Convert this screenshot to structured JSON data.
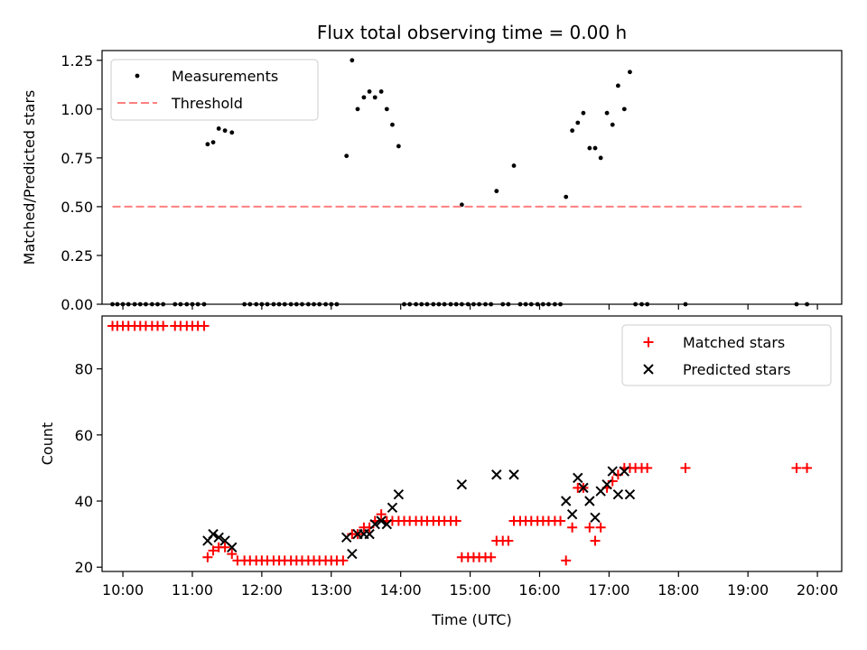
{
  "chart_data": [
    {
      "type": "scatter",
      "title": "Flux total observing time = 0.00 h",
      "xlabel": "",
      "ylabel": "Matched/Predicted stars",
      "ylim": [
        0,
        1.3
      ],
      "yticks": [
        "0.00",
        "0.25",
        "0.50",
        "0.75",
        "1.00",
        "1.25"
      ],
      "legend_position": "top-left",
      "series": [
        {
          "name": "Measurements",
          "marker": "dot",
          "color": "#000000",
          "points": [
            [
              9.85,
              0
            ],
            [
              9.92,
              0
            ],
            [
              10.0,
              0
            ],
            [
              10.08,
              0
            ],
            [
              10.17,
              0
            ],
            [
              10.25,
              0
            ],
            [
              10.33,
              0
            ],
            [
              10.42,
              0
            ],
            [
              10.5,
              0
            ],
            [
              10.58,
              0
            ],
            [
              10.75,
              0
            ],
            [
              10.83,
              0
            ],
            [
              10.92,
              0
            ],
            [
              11.0,
              0
            ],
            [
              11.08,
              0
            ],
            [
              11.17,
              0
            ],
            [
              11.22,
              0.82
            ],
            [
              11.3,
              0.83
            ],
            [
              11.38,
              0.9
            ],
            [
              11.47,
              0.89
            ],
            [
              11.57,
              0.88
            ],
            [
              11.75,
              0
            ],
            [
              11.83,
              0
            ],
            [
              11.92,
              0
            ],
            [
              12.0,
              0
            ],
            [
              12.08,
              0
            ],
            [
              12.17,
              0
            ],
            [
              12.25,
              0
            ],
            [
              12.33,
              0
            ],
            [
              12.42,
              0
            ],
            [
              12.5,
              0
            ],
            [
              12.58,
              0
            ],
            [
              12.67,
              0
            ],
            [
              12.75,
              0
            ],
            [
              12.83,
              0
            ],
            [
              12.92,
              0
            ],
            [
              13.0,
              0
            ],
            [
              13.08,
              0
            ],
            [
              13.22,
              0.76
            ],
            [
              13.3,
              1.25
            ],
            [
              13.38,
              1.0
            ],
            [
              13.47,
              1.06
            ],
            [
              13.55,
              1.09
            ],
            [
              13.63,
              1.06
            ],
            [
              13.72,
              1.09
            ],
            [
              13.8,
              1.0
            ],
            [
              13.88,
              0.92
            ],
            [
              13.97,
              0.81
            ],
            [
              14.05,
              0
            ],
            [
              14.13,
              0
            ],
            [
              14.22,
              0
            ],
            [
              14.3,
              0
            ],
            [
              14.38,
              0
            ],
            [
              14.47,
              0
            ],
            [
              14.55,
              0
            ],
            [
              14.63,
              0
            ],
            [
              14.72,
              0
            ],
            [
              14.8,
              0
            ],
            [
              14.88,
              0
            ],
            [
              14.88,
              0.51
            ],
            [
              14.97,
              0
            ],
            [
              15.05,
              0
            ],
            [
              15.13,
              0
            ],
            [
              15.22,
              0
            ],
            [
              15.3,
              0
            ],
            [
              15.38,
              0.58
            ],
            [
              15.47,
              0
            ],
            [
              15.55,
              0
            ],
            [
              15.63,
              0.71
            ],
            [
              15.72,
              0
            ],
            [
              15.8,
              0
            ],
            [
              15.88,
              0
            ],
            [
              15.97,
              0
            ],
            [
              16.05,
              0
            ],
            [
              16.13,
              0
            ],
            [
              16.22,
              0
            ],
            [
              16.3,
              0
            ],
            [
              16.38,
              0.55
            ],
            [
              16.47,
              0.89
            ],
            [
              16.55,
              0.93
            ],
            [
              16.63,
              0.98
            ],
            [
              16.72,
              0.8
            ],
            [
              16.8,
              0.8
            ],
            [
              16.88,
              0.75
            ],
            [
              16.97,
              0.98
            ],
            [
              17.05,
              0.92
            ],
            [
              17.13,
              1.12
            ],
            [
              17.22,
              1.0
            ],
            [
              17.3,
              1.19
            ],
            [
              17.38,
              0
            ],
            [
              17.47,
              0
            ],
            [
              17.55,
              0
            ],
            [
              18.1,
              0
            ],
            [
              19.7,
              0
            ],
            [
              19.85,
              0
            ]
          ]
        },
        {
          "name": "Threshold",
          "type": "line",
          "style": "dashed",
          "color": "#ff7f7f",
          "points": [
            [
              9.85,
              0.5
            ],
            [
              19.8,
              0.5
            ]
          ]
        }
      ]
    },
    {
      "type": "scatter",
      "title": "",
      "xlabel": "Time (UTC)",
      "ylabel": "Count",
      "ylim": [
        18.7,
        96
      ],
      "yticks": [
        "20",
        "40",
        "60",
        "80"
      ],
      "xlim": [
        9.7,
        20.35
      ],
      "xticks": [
        "10:00",
        "11:00",
        "12:00",
        "13:00",
        "14:00",
        "15:00",
        "16:00",
        "17:00",
        "18:00",
        "19:00",
        "20:00"
      ],
      "legend_position": "top-right",
      "series": [
        {
          "name": "Matched stars",
          "marker": "plus",
          "color": "#ff0000",
          "points": [
            [
              9.85,
              93
            ],
            [
              9.92,
              93
            ],
            [
              10.0,
              93
            ],
            [
              10.08,
              93
            ],
            [
              10.17,
              93
            ],
            [
              10.25,
              93
            ],
            [
              10.33,
              93
            ],
            [
              10.42,
              93
            ],
            [
              10.5,
              93
            ],
            [
              10.58,
              93
            ],
            [
              10.75,
              93
            ],
            [
              10.83,
              93
            ],
            [
              10.92,
              93
            ],
            [
              11.0,
              93
            ],
            [
              11.08,
              93
            ],
            [
              11.17,
              93
            ],
            [
              11.22,
              23
            ],
            [
              11.3,
              25
            ],
            [
              11.38,
              26
            ],
            [
              11.47,
              26
            ],
            [
              11.57,
              24
            ],
            [
              11.65,
              22
            ],
            [
              11.75,
              22
            ],
            [
              11.83,
              22
            ],
            [
              11.92,
              22
            ],
            [
              12.0,
              22
            ],
            [
              12.08,
              22
            ],
            [
              12.17,
              22
            ],
            [
              12.25,
              22
            ],
            [
              12.33,
              22
            ],
            [
              12.42,
              22
            ],
            [
              12.5,
              22
            ],
            [
              12.58,
              22
            ],
            [
              12.67,
              22
            ],
            [
              12.75,
              22
            ],
            [
              12.83,
              22
            ],
            [
              12.92,
              22
            ],
            [
              13.0,
              22
            ],
            [
              13.08,
              22
            ],
            [
              13.17,
              22
            ],
            [
              13.3,
              30
            ],
            [
              13.38,
              30
            ],
            [
              13.47,
              32
            ],
            [
              13.55,
              32
            ],
            [
              13.63,
              34
            ],
            [
              13.72,
              36
            ],
            [
              13.8,
              34
            ],
            [
              13.88,
              34
            ],
            [
              13.97,
              34
            ],
            [
              14.05,
              34
            ],
            [
              14.13,
              34
            ],
            [
              14.22,
              34
            ],
            [
              14.3,
              34
            ],
            [
              14.38,
              34
            ],
            [
              14.47,
              34
            ],
            [
              14.55,
              34
            ],
            [
              14.63,
              34
            ],
            [
              14.72,
              34
            ],
            [
              14.8,
              34
            ],
            [
              14.88,
              23
            ],
            [
              14.97,
              23
            ],
            [
              15.05,
              23
            ],
            [
              15.13,
              23
            ],
            [
              15.22,
              23
            ],
            [
              15.3,
              23
            ],
            [
              15.38,
              28
            ],
            [
              15.47,
              28
            ],
            [
              15.55,
              28
            ],
            [
              15.63,
              34
            ],
            [
              15.72,
              34
            ],
            [
              15.8,
              34
            ],
            [
              15.88,
              34
            ],
            [
              15.97,
              34
            ],
            [
              16.05,
              34
            ],
            [
              16.13,
              34
            ],
            [
              16.22,
              34
            ],
            [
              16.3,
              34
            ],
            [
              16.38,
              22
            ],
            [
              16.47,
              32
            ],
            [
              16.55,
              44
            ],
            [
              16.63,
              44
            ],
            [
              16.72,
              32
            ],
            [
              16.8,
              28
            ],
            [
              16.88,
              32
            ],
            [
              16.97,
              44
            ],
            [
              17.05,
              46
            ],
            [
              17.13,
              48
            ],
            [
              17.22,
              50
            ],
            [
              17.3,
              50
            ],
            [
              17.38,
              50
            ],
            [
              17.47,
              50
            ],
            [
              17.55,
              50
            ],
            [
              18.1,
              50
            ],
            [
              19.7,
              50
            ],
            [
              19.85,
              50
            ]
          ]
        },
        {
          "name": "Predicted stars",
          "marker": "x",
          "color": "#000000",
          "points": [
            [
              11.22,
              28
            ],
            [
              11.3,
              30
            ],
            [
              11.38,
              29
            ],
            [
              11.47,
              28
            ],
            [
              11.57,
              26
            ],
            [
              13.22,
              29
            ],
            [
              13.3,
              24
            ],
            [
              13.38,
              30
            ],
            [
              13.47,
              30
            ],
            [
              13.55,
              30
            ],
            [
              13.63,
              33
            ],
            [
              13.72,
              34
            ],
            [
              13.8,
              33
            ],
            [
              13.88,
              38
            ],
            [
              13.97,
              42
            ],
            [
              14.88,
              45
            ],
            [
              15.38,
              48
            ],
            [
              15.63,
              48
            ],
            [
              16.38,
              40
            ],
            [
              16.47,
              36
            ],
            [
              16.55,
              47
            ],
            [
              16.63,
              44
            ],
            [
              16.72,
              40
            ],
            [
              16.8,
              35
            ],
            [
              16.88,
              43
            ],
            [
              16.97,
              45
            ],
            [
              17.05,
              49
            ],
            [
              17.13,
              42
            ],
            [
              17.22,
              49
            ],
            [
              17.3,
              42
            ]
          ]
        }
      ]
    }
  ]
}
